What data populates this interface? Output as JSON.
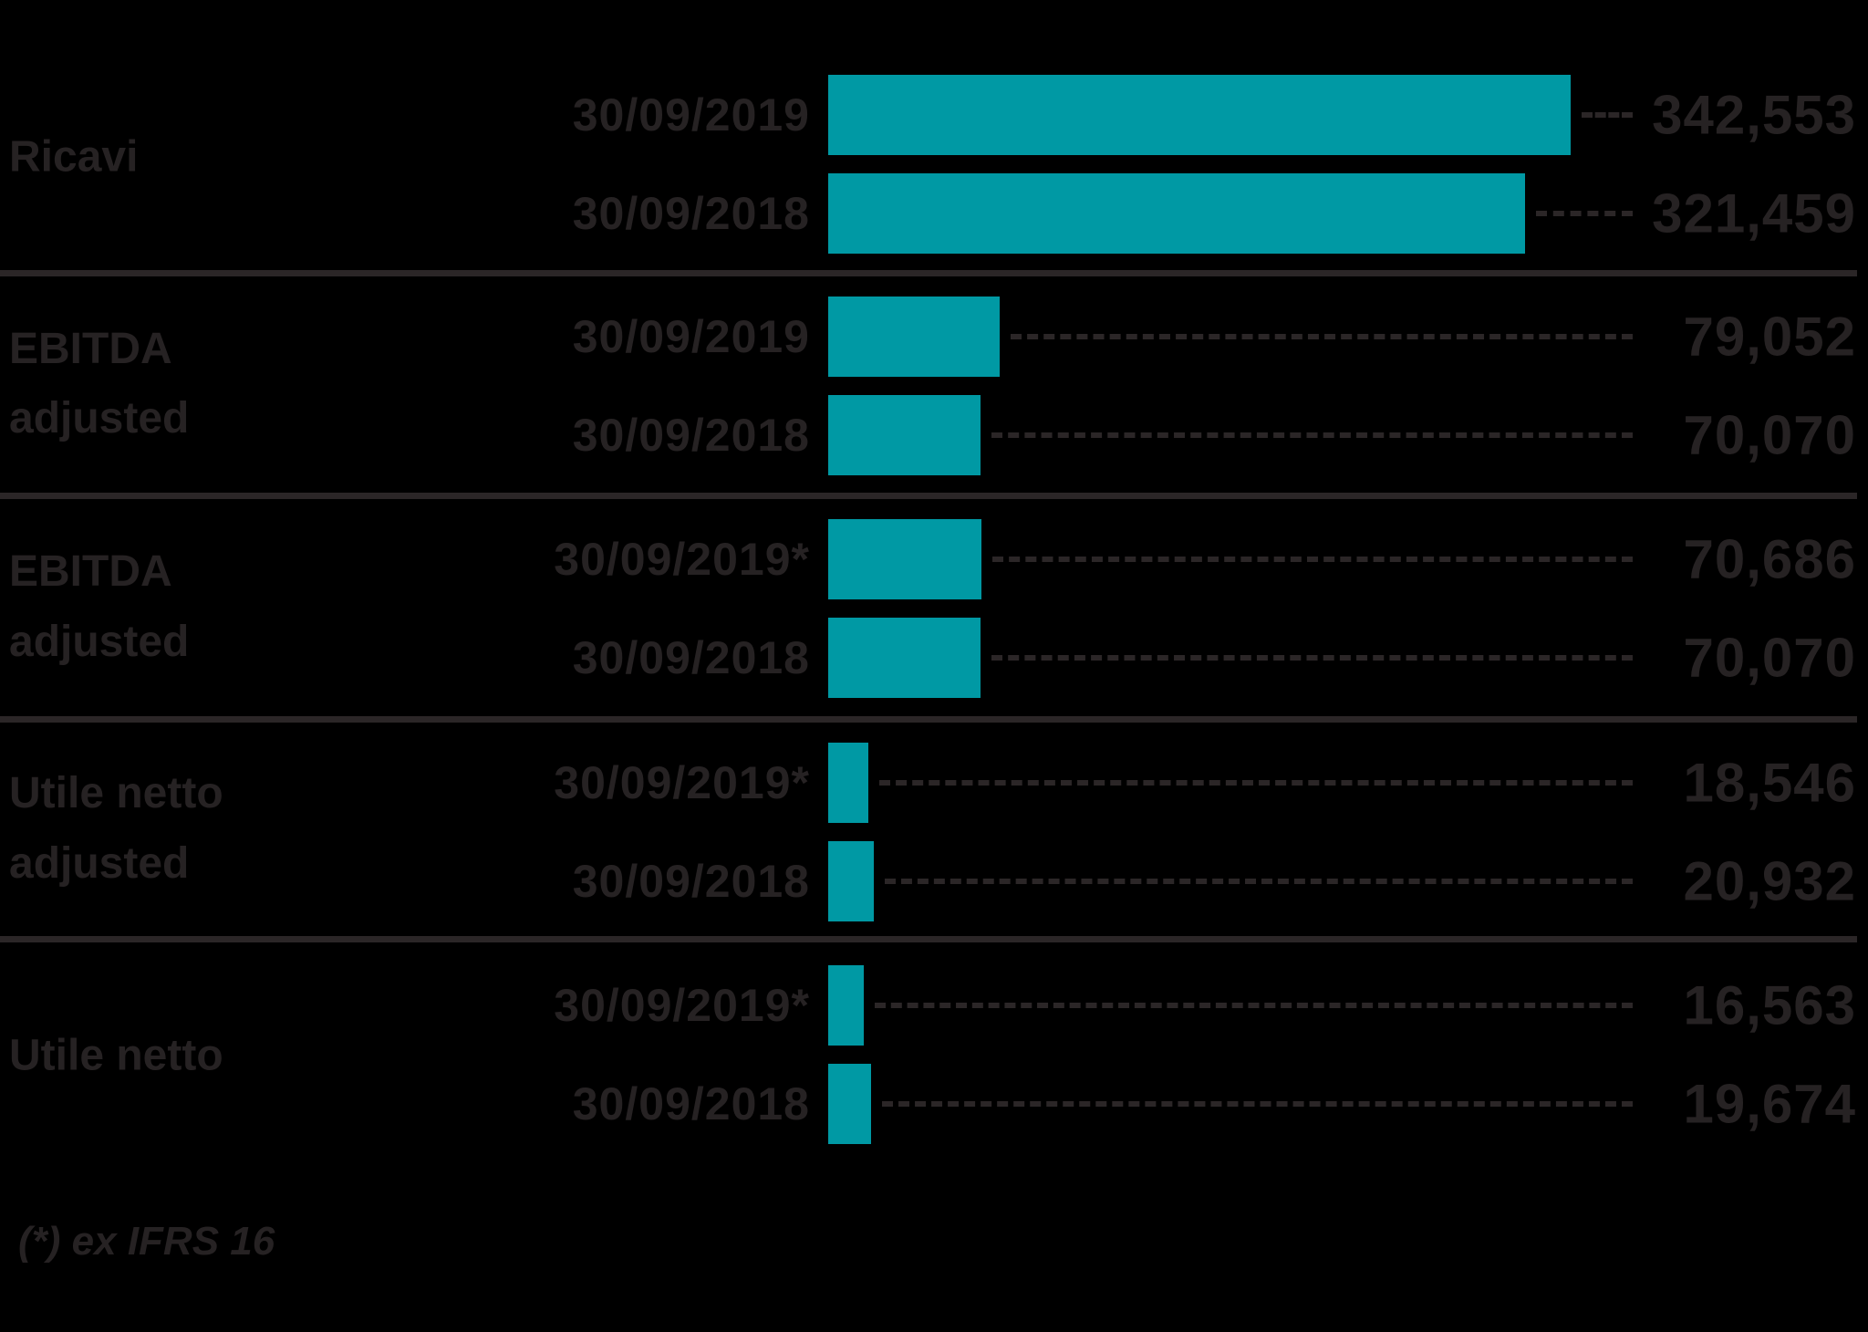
{
  "chart_data": {
    "type": "bar",
    "orientation": "horizontal",
    "title": "",
    "xlabel": "",
    "ylabel": "",
    "xlim": [
      0,
      342553
    ],
    "grid": false,
    "legend": "none",
    "bar_color": "#0099a4",
    "text_color": "#262223",
    "line_color": "#2b2627",
    "background_color": "#000000",
    "blocks": [
      {
        "category_lines": [
          "Ricavi"
        ],
        "rows": [
          {
            "label": "30/09/2019",
            "value": 342553,
            "display": "342,553"
          },
          {
            "label": "30/09/2018",
            "value": 321459,
            "display": "321,459"
          }
        ]
      },
      {
        "category_lines": [
          "EBITDA",
          "adjusted"
        ],
        "rows": [
          {
            "label": "30/09/2019",
            "value": 79052,
            "display": "79,052"
          },
          {
            "label": "30/09/2018",
            "value": 70070,
            "display": "70,070"
          }
        ]
      },
      {
        "category_lines": [
          "EBITDA",
          "adjusted"
        ],
        "rows": [
          {
            "label": "30/09/2019*",
            "value": 70686,
            "display": "70,686"
          },
          {
            "label": "30/09/2018",
            "value": 70070,
            "display": "70,070"
          }
        ]
      },
      {
        "category_lines": [
          "Utile netto",
          "adjusted"
        ],
        "rows": [
          {
            "label": "30/09/2019*",
            "value": 18546,
            "display": "18,546"
          },
          {
            "label": "30/09/2018",
            "value": 20932,
            "display": "20,932"
          }
        ]
      },
      {
        "category_lines": [
          "Utile netto"
        ],
        "rows": [
          {
            "label": "30/09/2019*",
            "value": 16563,
            "display": "16,563"
          },
          {
            "label": "30/09/2018",
            "value": 19674,
            "display": "19,674"
          }
        ]
      }
    ],
    "footnote": "(*) ex IFRS 16"
  }
}
